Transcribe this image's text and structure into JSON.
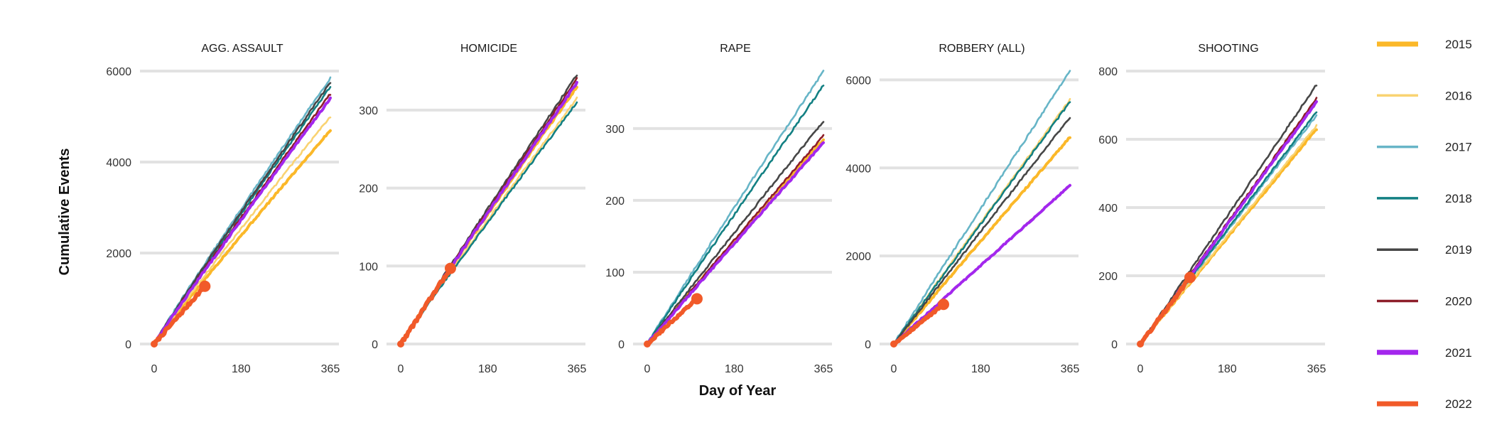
{
  "chart_data": {
    "type": "line",
    "ylabel": "Cumulative Events",
    "xlabel": "Day of Year",
    "x_ticks": [
      0,
      180,
      365
    ],
    "xlim": [
      0,
      365
    ],
    "legend": {
      "placement": "right",
      "entries": [
        {
          "name": "2015",
          "color": "#FBB829"
        },
        {
          "name": "2016",
          "color": "#F9D372"
        },
        {
          "name": "2017",
          "color": "#67B5C7"
        },
        {
          "name": "2018",
          "color": "#138083"
        },
        {
          "name": "2019",
          "color": "#474747"
        },
        {
          "name": "2020",
          "color": "#8E1E2A"
        },
        {
          "name": "2021",
          "color": "#A327ED"
        },
        {
          "name": "2022",
          "color": "#F15A29"
        }
      ]
    },
    "grid": true,
    "panels": [
      {
        "title": "AGG. ASSAULT",
        "ylim": [
          0,
          6000
        ],
        "y_ticks": [
          0,
          2000,
          4000,
          6000
        ],
        "series_end_values": {
          "2015": 4700,
          "2016": 5000,
          "2017": 5850,
          "2018": 5650,
          "2019": 5750,
          "2020": 5500,
          "2021": 5400
        },
        "current_2022": {
          "day": 105,
          "value": 1270
        }
      },
      {
        "title": "HOMICIDE",
        "ylim": [
          0,
          350
        ],
        "y_ticks": [
          0,
          100,
          200,
          300
        ],
        "series_end_values": {
          "2015": 330,
          "2016": 315,
          "2017": 335,
          "2018": 310,
          "2019": 345,
          "2020": 340,
          "2021": 335
        },
        "current_2022": {
          "day": 103,
          "value": 97
        }
      },
      {
        "title": "RAPE",
        "ylim": [
          0,
          380
        ],
        "y_ticks": [
          0,
          100,
          200,
          300
        ],
        "series_end_values": {
          "2015": 285,
          "2016": 280,
          "2017": 380,
          "2018": 360,
          "2019": 310,
          "2020": 290,
          "2021": 280
        },
        "current_2022": {
          "day": 103,
          "value": 63
        }
      },
      {
        "title": "ROBBERY (ALL)",
        "ylim": [
          0,
          6200
        ],
        "y_ticks": [
          0,
          2000,
          4000,
          6000
        ],
        "series_end_values": {
          "2015": 4700,
          "2016": 5550,
          "2017": 6200,
          "2018": 5500,
          "2019": 5150,
          "2020": 3600,
          "2021": 3600
        },
        "current_2022": {
          "day": 103,
          "value": 900
        }
      },
      {
        "title": "SHOOTING",
        "ylim": [
          0,
          780
        ],
        "y_ticks": [
          0,
          200,
          400,
          600,
          800
        ],
        "series_end_values": {
          "2015": 630,
          "2016": 640,
          "2017": 670,
          "2018": 680,
          "2019": 760,
          "2020": 720,
          "2021": 710
        },
        "current_2022": {
          "day": 103,
          "value": 195
        }
      }
    ]
  }
}
